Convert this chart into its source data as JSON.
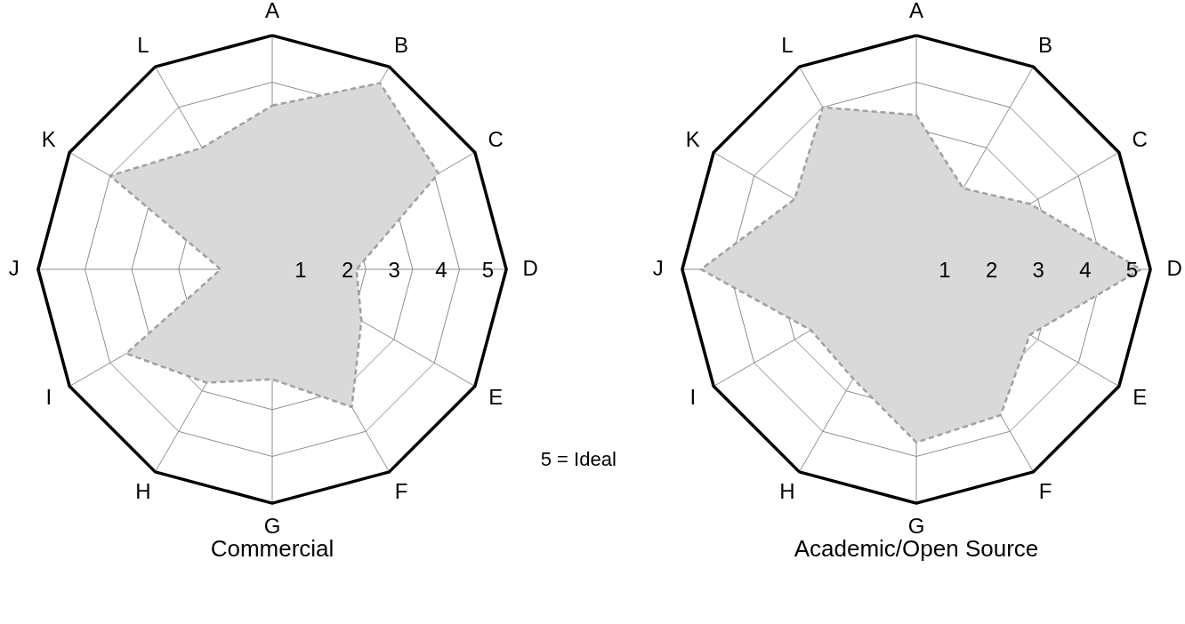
{
  "chart_data": [
    {
      "type": "radar",
      "title": "Commercial",
      "categories": [
        "A",
        "B",
        "C",
        "D",
        "E",
        "F",
        "G",
        "H",
        "I",
        "J",
        "K",
        "L"
      ],
      "series": [
        {
          "color": "#d9d9d9",
          "values": [
            3.5,
            4.6,
            4.1,
            1.8,
            2.2,
            3.4,
            2.35,
            2.8,
            3.6,
            1.1,
            4.0,
            3.0
          ]
        }
      ],
      "ylim": [
        0,
        5
      ],
      "yticks": [
        1,
        2,
        3,
        4,
        5
      ],
      "grid": true,
      "line_style": "dashed",
      "annotations": [
        "5 = Ideal"
      ]
    },
    {
      "type": "radar",
      "title": "Academic/Open Source",
      "categories": [
        "A",
        "B",
        "C",
        "D",
        "E",
        "F",
        "G",
        "H",
        "I",
        "J",
        "K",
        "L"
      ],
      "series": [
        {
          "color": "#d9d9d9",
          "values": [
            3.3,
            2.0,
            2.8,
            4.8,
            2.8,
            3.6,
            3.7,
            2.7,
            2.6,
            4.6,
            3.0,
            4.0
          ]
        }
      ],
      "ylim": [
        0,
        5
      ],
      "yticks": [
        1,
        2,
        3,
        4,
        5
      ],
      "grid": true,
      "line_style": "dashed"
    }
  ]
}
